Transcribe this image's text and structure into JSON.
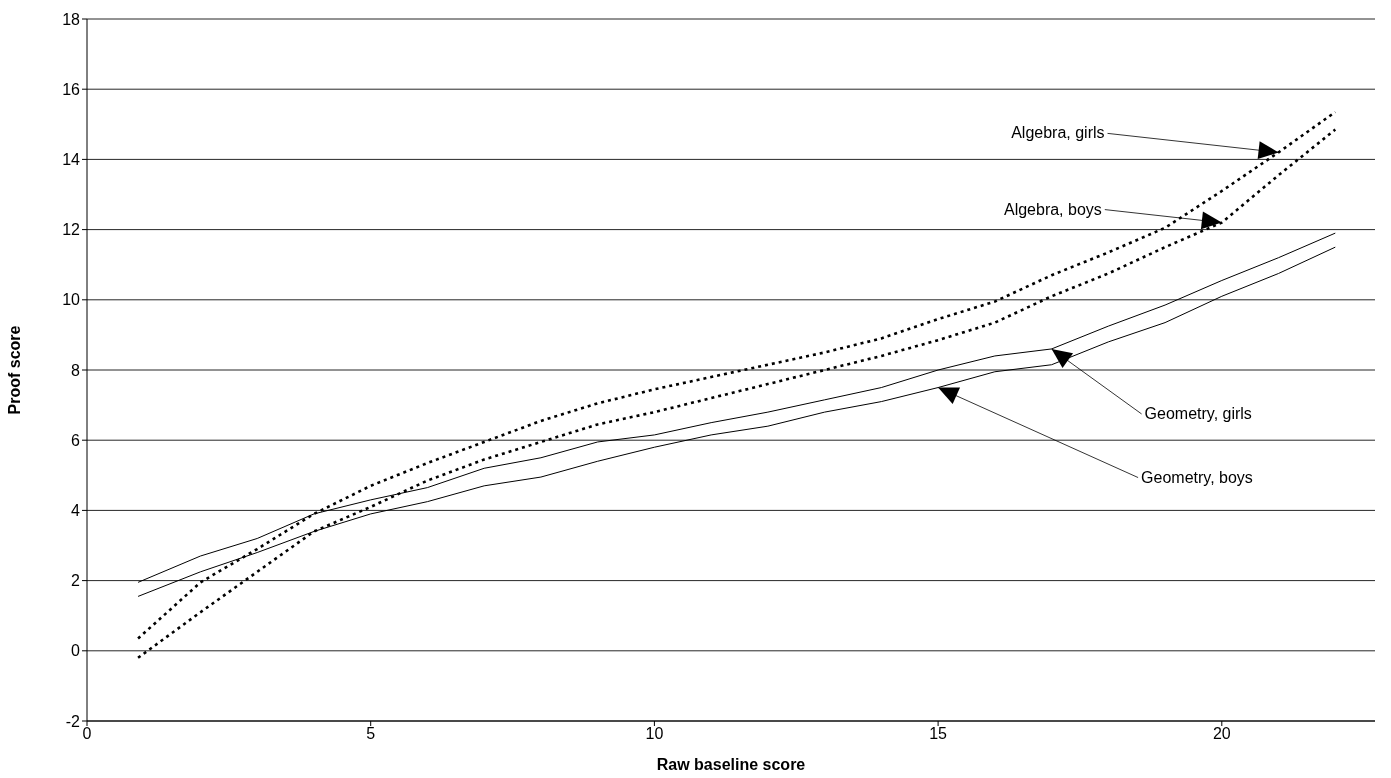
{
  "chart_data": {
    "type": "line",
    "xlabel": "Raw baseline score",
    "ylabel": "Proof score",
    "xlim": [
      0,
      22.7
    ],
    "xticks": [
      0,
      5,
      10,
      15,
      20
    ],
    "ylim": [
      -2,
      18
    ],
    "yticks": [
      -2,
      0,
      2,
      4,
      6,
      8,
      10,
      12,
      14,
      16,
      18
    ],
    "grid": "y",
    "legend": false,
    "marker": "none",
    "series": [
      {
        "color": "#000000",
        "line_style": "dotted",
        "x": [
          0.9,
          2,
          3,
          4,
          5,
          6,
          7,
          8,
          9,
          10,
          11,
          12,
          13,
          14,
          15,
          16,
          17,
          18,
          19,
          20,
          21,
          22
        ],
        "values": [
          0.35,
          1.95,
          2.9,
          3.9,
          4.7,
          5.35,
          5.95,
          6.55,
          7.05,
          7.45,
          7.8,
          8.15,
          8.5,
          8.9,
          9.45,
          9.95,
          10.7,
          11.35,
          12.05,
          13.1,
          14.2,
          15.35
        ]
      },
      {
        "color": "#000000",
        "line_style": "dotted",
        "x": [
          0.9,
          2,
          3,
          4,
          5,
          6,
          7,
          8,
          9,
          10,
          11,
          12,
          13,
          14,
          15,
          16,
          17,
          18,
          19,
          20,
          21,
          22
        ],
        "values": [
          -0.2,
          1.1,
          2.25,
          3.4,
          4.1,
          4.85,
          5.45,
          5.95,
          6.45,
          6.8,
          7.2,
          7.6,
          8.0,
          8.4,
          8.85,
          9.35,
          10.1,
          10.75,
          11.5,
          12.2,
          13.55,
          14.85
        ]
      },
      {
        "color": "#000000",
        "line_style": "solid",
        "x": [
          0.9,
          2,
          3,
          4,
          5,
          6,
          7,
          8,
          9,
          10,
          11,
          12,
          13,
          14,
          15,
          16,
          17,
          18,
          19,
          20,
          21,
          22
        ],
        "values": [
          1.95,
          2.7,
          3.2,
          3.9,
          4.3,
          4.65,
          5.2,
          5.5,
          5.95,
          6.15,
          6.5,
          6.8,
          7.15,
          7.5,
          8.0,
          8.4,
          8.6,
          9.25,
          9.85,
          10.55,
          11.2,
          11.9
        ]
      },
      {
        "color": "#000000",
        "line_style": "solid",
        "x": [
          0.9,
          2,
          3,
          4,
          5,
          6,
          7,
          8,
          9,
          10,
          11,
          12,
          13,
          14,
          15,
          16,
          17,
          18,
          19,
          20,
          21,
          22
        ],
        "values": [
          1.55,
          2.25,
          2.8,
          3.4,
          3.9,
          4.25,
          4.7,
          4.95,
          5.4,
          5.8,
          6.15,
          6.4,
          6.8,
          7.1,
          7.5,
          7.95,
          8.15,
          8.8,
          9.35,
          10.1,
          10.75,
          11.5
        ]
      }
    ],
    "annotations": [
      {
        "text": "Algebra, girls",
        "x": 21,
        "y": 14.2
      },
      {
        "text": "Algebra, boys",
        "x": 20,
        "y": 12.2
      },
      {
        "text": "Geometry, girls",
        "x": 17,
        "y": 8.6
      },
      {
        "text": "Geometry, boys",
        "x": 15,
        "y": 7.5
      }
    ]
  }
}
